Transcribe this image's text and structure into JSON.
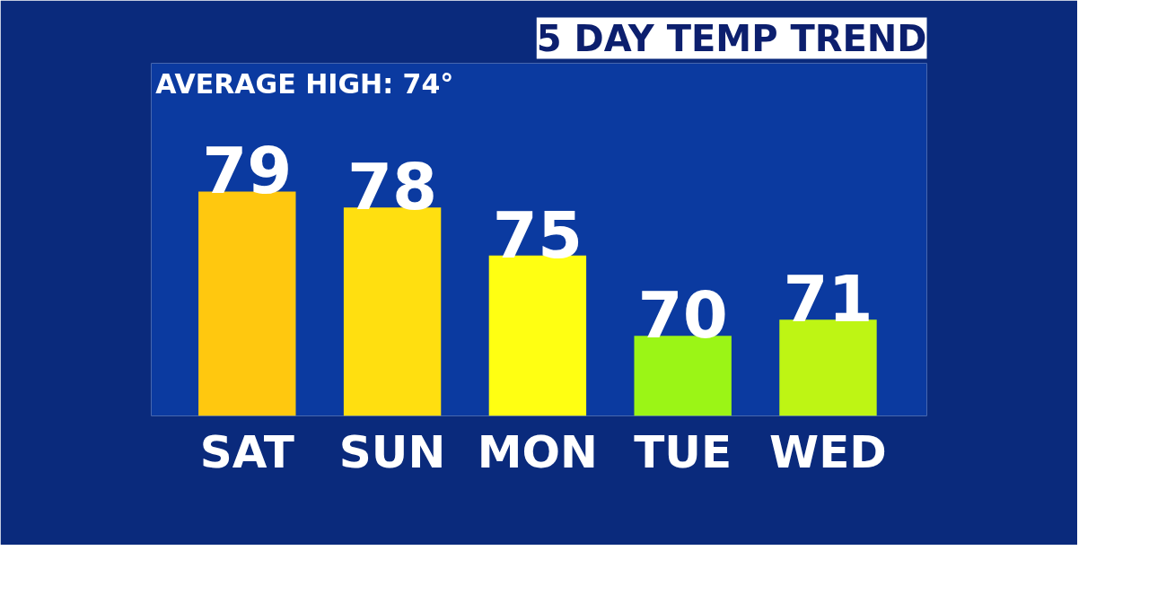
{
  "chart_data": {
    "type": "bar",
    "title": "5 DAY TEMP TREND",
    "annotations": [
      "AVERAGE HIGH: 74°"
    ],
    "categories": [
      "SAT",
      "SUN",
      "MON",
      "TUE",
      "WED"
    ],
    "values": [
      79,
      78,
      75,
      70,
      71
    ],
    "colors": [
      "#ffc80f",
      "#ffdf10",
      "#ffff12",
      "#9bf516",
      "#bef514"
    ],
    "data_labels": true,
    "ylim": [
      65,
      87
    ],
    "tick_labels": "x"
  }
}
